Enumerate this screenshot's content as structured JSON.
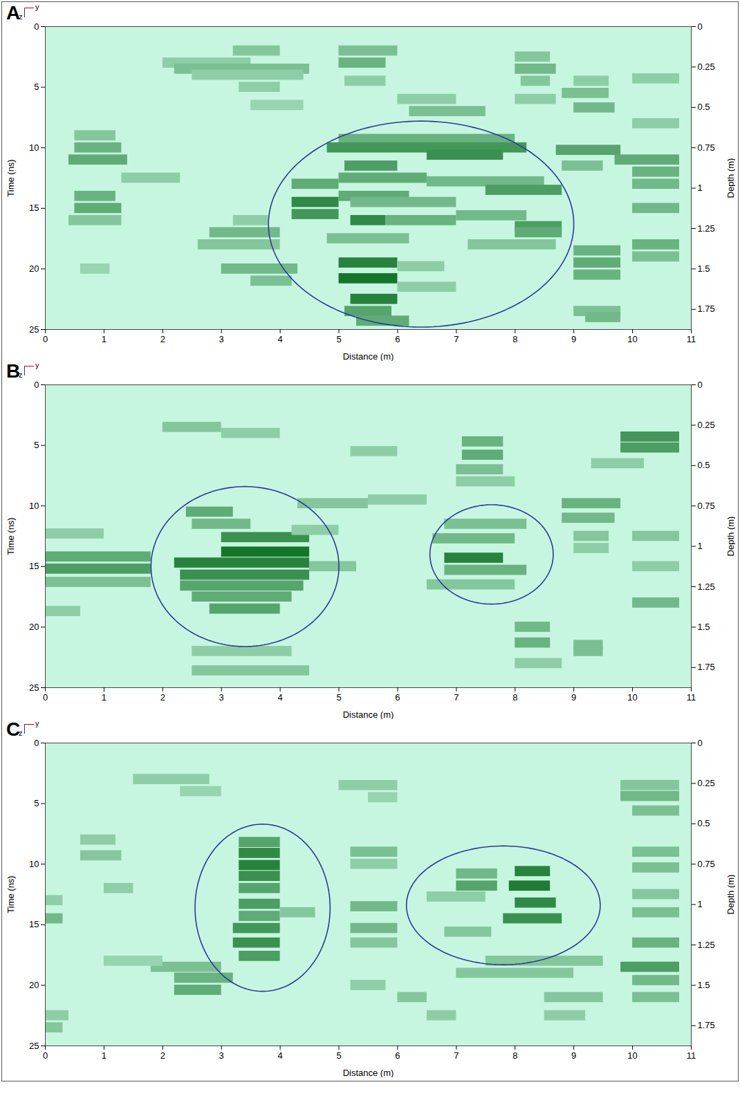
{
  "chart_data": [
    {
      "type": "heatmap",
      "title": "A",
      "axes_icon": [
        "y",
        "z"
      ],
      "x_label": "Distance (m)",
      "y_label": "Time (ns)",
      "y2_label": "Depth (m)",
      "xlim": [
        0,
        11
      ],
      "xticks": [
        0,
        1,
        2,
        3,
        4,
        5,
        6,
        7,
        8,
        9,
        10,
        11
      ],
      "ylim": [
        0,
        25
      ],
      "yticks": [
        0,
        5,
        10,
        15,
        20,
        25
      ],
      "y2lim": [
        0,
        1.875
      ],
      "y2ticks": [
        0,
        0.25,
        0.5,
        0.75,
        1,
        1.25,
        1.5,
        1.75
      ],
      "amplitude_range": [
        0,
        1
      ],
      "reflections": [
        [
          0.5,
          1.2,
          9,
          0.35
        ],
        [
          0.5,
          1.3,
          10,
          0.5
        ],
        [
          0.4,
          1.4,
          11,
          0.55
        ],
        [
          0.5,
          1.2,
          14,
          0.5
        ],
        [
          0.5,
          1.3,
          15,
          0.55
        ],
        [
          0.4,
          1.3,
          16,
          0.35
        ],
        [
          0.6,
          1.1,
          20,
          0.25
        ],
        [
          1.3,
          2.3,
          12.5,
          0.3
        ],
        [
          2,
          3.5,
          3,
          0.3
        ],
        [
          2.2,
          4.5,
          3.5,
          0.4
        ],
        [
          3.2,
          4,
          2,
          0.35
        ],
        [
          2.5,
          4.4,
          4,
          0.3
        ],
        [
          3.3,
          4,
          5,
          0.3
        ],
        [
          3.5,
          4.4,
          6.5,
          0.25
        ],
        [
          2.8,
          4,
          17,
          0.45
        ],
        [
          2.6,
          4,
          18,
          0.35
        ],
        [
          3,
          4.3,
          20,
          0.45
        ],
        [
          3.5,
          4.2,
          21,
          0.4
        ],
        [
          3.2,
          3.8,
          16,
          0.3
        ],
        [
          5,
          6,
          2,
          0.4
        ],
        [
          5,
          5.8,
          3,
          0.5
        ],
        [
          5.1,
          5.8,
          4.5,
          0.3
        ],
        [
          6.2,
          7.5,
          7,
          0.4
        ],
        [
          6,
          7,
          6,
          0.3
        ],
        [
          5,
          8,
          9.3,
          0.5
        ],
        [
          4.8,
          8.2,
          10,
          0.7
        ],
        [
          6.5,
          7.8,
          10.6,
          0.75
        ],
        [
          5.1,
          6,
          11.5,
          0.65
        ],
        [
          5,
          6.5,
          12.5,
          0.55
        ],
        [
          6.5,
          8.5,
          12.8,
          0.45
        ],
        [
          4.2,
          5,
          13,
          0.55
        ],
        [
          4.2,
          5,
          14.5,
          0.8
        ],
        [
          4.2,
          5,
          15.5,
          0.7
        ],
        [
          5,
          6.2,
          14,
          0.55
        ],
        [
          5.2,
          7,
          14.5,
          0.45
        ],
        [
          7.5,
          8.8,
          13.5,
          0.65
        ],
        [
          5.2,
          5.8,
          16,
          0.8
        ],
        [
          5.8,
          7,
          16,
          0.5
        ],
        [
          7,
          8.2,
          15.6,
          0.45
        ],
        [
          8,
          8.8,
          16.5,
          0.65
        ],
        [
          8,
          8.8,
          17,
          0.55
        ],
        [
          4.8,
          6.2,
          17.5,
          0.4
        ],
        [
          7.2,
          8.7,
          18,
          0.35
        ],
        [
          5,
          6,
          19.5,
          0.85
        ],
        [
          5,
          6,
          20.8,
          0.95
        ],
        [
          5.2,
          6,
          22.5,
          0.85
        ],
        [
          5.1,
          5.9,
          23.5,
          0.6
        ],
        [
          5.3,
          6.2,
          24.3,
          0.55
        ],
        [
          6,
          6.8,
          19.8,
          0.3
        ],
        [
          6,
          7,
          21.5,
          0.3
        ],
        [
          8,
          8.6,
          2.5,
          0.35
        ],
        [
          8,
          8.7,
          3.5,
          0.45
        ],
        [
          8.1,
          8.6,
          4.5,
          0.35
        ],
        [
          8,
          8.7,
          6,
          0.3
        ],
        [
          8.8,
          9.6,
          5.5,
          0.4
        ],
        [
          9,
          9.7,
          6.7,
          0.45
        ],
        [
          9,
          9.6,
          4.5,
          0.3
        ],
        [
          8.7,
          9.8,
          10.2,
          0.6
        ],
        [
          8.8,
          9.5,
          11.5,
          0.4
        ],
        [
          9.7,
          10.8,
          11,
          0.55
        ],
        [
          10,
          10.8,
          12,
          0.5
        ],
        [
          10,
          10.8,
          13,
          0.45
        ],
        [
          10,
          10.8,
          15,
          0.45
        ],
        [
          10,
          10.8,
          18,
          0.5
        ],
        [
          10,
          10.8,
          19,
          0.4
        ],
        [
          10,
          10.8,
          8,
          0.3
        ],
        [
          10,
          10.8,
          4.3,
          0.3
        ],
        [
          9,
          9.8,
          18.5,
          0.5
        ],
        [
          9,
          9.8,
          19.5,
          0.55
        ],
        [
          9,
          9.8,
          20.5,
          0.5
        ],
        [
          9,
          9.8,
          23.5,
          0.4
        ],
        [
          9.2,
          9.8,
          24,
          0.45
        ]
      ],
      "ellipses": [
        {
          "cx": 6.4,
          "cy": 16.3,
          "rx": 2.6,
          "ry": 8.5
        }
      ]
    },
    {
      "type": "heatmap",
      "title": "B",
      "axes_icon": [
        "y",
        "z"
      ],
      "x_label": "Distance (m)",
      "y_label": "Time (ns)",
      "y2_label": "Depth (m)",
      "xlim": [
        0,
        11
      ],
      "xticks": [
        0,
        1,
        2,
        3,
        4,
        5,
        6,
        7,
        8,
        9,
        10,
        11
      ],
      "ylim": [
        0,
        25
      ],
      "yticks": [
        0,
        5,
        10,
        15,
        20,
        25
      ],
      "y2lim": [
        0,
        1.875
      ],
      "y2ticks": [
        0,
        0.25,
        0.5,
        0.75,
        1,
        1.25,
        1.5,
        1.75
      ],
      "amplitude_range": [
        0,
        1
      ],
      "reflections": [
        [
          0,
          1.8,
          14.2,
          0.55
        ],
        [
          0,
          1.8,
          15.2,
          0.65
        ],
        [
          0,
          1.8,
          16.3,
          0.4
        ],
        [
          0,
          0.6,
          18.7,
          0.3
        ],
        [
          0,
          1,
          12.3,
          0.3
        ],
        [
          2,
          3,
          3.5,
          0.35
        ],
        [
          3,
          4,
          4,
          0.3
        ],
        [
          2.4,
          3.2,
          10.5,
          0.55
        ],
        [
          2.5,
          3.5,
          11.5,
          0.45
        ],
        [
          3,
          4.5,
          12.6,
          0.75
        ],
        [
          3,
          4.5,
          13.8,
          0.95
        ],
        [
          2.2,
          4.5,
          14.7,
          0.85
        ],
        [
          2.3,
          4.5,
          15.7,
          0.75
        ],
        [
          2.3,
          4.4,
          16.6,
          0.6
        ],
        [
          2.5,
          4.2,
          17.5,
          0.55
        ],
        [
          2.8,
          4,
          18.5,
          0.6
        ],
        [
          4.2,
          5,
          12,
          0.3
        ],
        [
          4.5,
          5.3,
          15,
          0.35
        ],
        [
          2.5,
          4.2,
          22,
          0.3
        ],
        [
          2.5,
          4.5,
          23.6,
          0.35
        ],
        [
          4.3,
          5.5,
          9.8,
          0.35
        ],
        [
          5.5,
          6.5,
          9.5,
          0.3
        ],
        [
          5.2,
          6,
          5.5,
          0.3
        ],
        [
          7.1,
          7.8,
          4.7,
          0.5
        ],
        [
          7.1,
          7.8,
          5.8,
          0.55
        ],
        [
          7,
          7.8,
          7,
          0.4
        ],
        [
          7,
          8,
          8,
          0.3
        ],
        [
          6.8,
          8.2,
          11.5,
          0.4
        ],
        [
          6.6,
          8,
          12.7,
          0.45
        ],
        [
          6.8,
          7.8,
          14.3,
          0.85
        ],
        [
          6.8,
          8.2,
          15.3,
          0.5
        ],
        [
          6.5,
          8,
          16.5,
          0.35
        ],
        [
          8,
          8.6,
          20,
          0.45
        ],
        [
          8,
          8.6,
          21.3,
          0.5
        ],
        [
          8,
          8.8,
          23,
          0.3
        ],
        [
          8.8,
          9.8,
          9.8,
          0.5
        ],
        [
          8.8,
          9.7,
          11,
          0.45
        ],
        [
          9,
          9.6,
          12.5,
          0.35
        ],
        [
          9,
          9.6,
          13.5,
          0.3
        ],
        [
          9.8,
          10.8,
          4.3,
          0.7
        ],
        [
          9.8,
          10.8,
          5.2,
          0.65
        ],
        [
          9.3,
          10.2,
          6.5,
          0.3
        ],
        [
          10,
          10.8,
          18,
          0.45
        ],
        [
          9,
          9.5,
          21.5,
          0.4
        ],
        [
          9,
          9.5,
          22,
          0.4
        ],
        [
          10,
          10.8,
          12.5,
          0.35
        ],
        [
          10,
          10.8,
          15,
          0.3
        ]
      ],
      "ellipses": [
        {
          "cx": 3.4,
          "cy": 15,
          "rx": 1.6,
          "ry": 6.6
        },
        {
          "cx": 7.6,
          "cy": 14,
          "rx": 1.05,
          "ry": 4.1
        }
      ]
    },
    {
      "type": "heatmap",
      "title": "C",
      "axes_icon": [
        "y",
        "z"
      ],
      "x_label": "Distance (m)",
      "y_label": "Time (ns)",
      "y2_label": "Depth (m)",
      "xlim": [
        0,
        11
      ],
      "xticks": [
        0,
        1,
        2,
        3,
        4,
        5,
        6,
        7,
        8,
        9,
        10,
        11
      ],
      "ylim": [
        0,
        25
      ],
      "yticks": [
        0,
        5,
        10,
        15,
        20,
        25
      ],
      "y2lim": [
        0,
        1.875
      ],
      "y2ticks": [
        0,
        0.25,
        0.5,
        0.75,
        1,
        1.25,
        1.5,
        1.75
      ],
      "amplitude_range": [
        0,
        1
      ],
      "reflections": [
        [
          0,
          0.3,
          14.5,
          0.45
        ],
        [
          0,
          0.3,
          13,
          0.3
        ],
        [
          0,
          0.4,
          22.5,
          0.3
        ],
        [
          0,
          0.3,
          23.5,
          0.35
        ],
        [
          0.6,
          1.2,
          8,
          0.3
        ],
        [
          0.6,
          1.3,
          9.3,
          0.35
        ],
        [
          1,
          1.5,
          12,
          0.3
        ],
        [
          1.5,
          2.8,
          3,
          0.3
        ],
        [
          2.3,
          3,
          4,
          0.25
        ],
        [
          1.8,
          3,
          18.5,
          0.4
        ],
        [
          2.2,
          3.2,
          19.4,
          0.5
        ],
        [
          2.2,
          3,
          20.4,
          0.55
        ],
        [
          1,
          2,
          18,
          0.25
        ],
        [
          3.3,
          4,
          8.2,
          0.6
        ],
        [
          3.3,
          4,
          9.1,
          0.8
        ],
        [
          3.3,
          4,
          10.1,
          0.85
        ],
        [
          3.3,
          4,
          11,
          0.75
        ],
        [
          3.3,
          4,
          12,
          0.6
        ],
        [
          3.3,
          4,
          13.3,
          0.65
        ],
        [
          3.3,
          4,
          14.3,
          0.55
        ],
        [
          3.2,
          4,
          15.3,
          0.7
        ],
        [
          3.2,
          4,
          16.5,
          0.75
        ],
        [
          3.3,
          4,
          17.6,
          0.65
        ],
        [
          4,
          4.6,
          14,
          0.35
        ],
        [
          5.2,
          6,
          9,
          0.4
        ],
        [
          5.2,
          6,
          10,
          0.3
        ],
        [
          5.2,
          6,
          13.5,
          0.45
        ],
        [
          5.2,
          6,
          15.3,
          0.45
        ],
        [
          5.2,
          6,
          16.5,
          0.35
        ],
        [
          5.2,
          5.8,
          20,
          0.3
        ],
        [
          5,
          6,
          3.5,
          0.3
        ],
        [
          5.5,
          6,
          4.5,
          0.25
        ],
        [
          6,
          6.5,
          21,
          0.35
        ],
        [
          6.5,
          7,
          22.5,
          0.3
        ],
        [
          7,
          7.7,
          10.8,
          0.45
        ],
        [
          7,
          7.7,
          11.8,
          0.6
        ],
        [
          8,
          8.6,
          10.6,
          0.85
        ],
        [
          7.9,
          8.6,
          11.8,
          0.9
        ],
        [
          8,
          8.7,
          13.2,
          0.8
        ],
        [
          7.8,
          8.8,
          14.5,
          0.75
        ],
        [
          6.8,
          7.6,
          15.6,
          0.35
        ],
        [
          6.5,
          7.5,
          12.7,
          0.3
        ],
        [
          7.5,
          9.5,
          18,
          0.35
        ],
        [
          7,
          9,
          19,
          0.35
        ],
        [
          8.5,
          9.5,
          21,
          0.35
        ],
        [
          8.5,
          9.2,
          22.5,
          0.3
        ],
        [
          9.8,
          10.8,
          3.5,
          0.35
        ],
        [
          9.8,
          10.8,
          4.4,
          0.45
        ],
        [
          10,
          10.8,
          5.6,
          0.4
        ],
        [
          10,
          10.8,
          9,
          0.4
        ],
        [
          10,
          10.8,
          10.3,
          0.4
        ],
        [
          10,
          10.8,
          12.5,
          0.35
        ],
        [
          10,
          10.8,
          14,
          0.4
        ],
        [
          10,
          10.8,
          16.5,
          0.5
        ],
        [
          9.8,
          10.8,
          18.5,
          0.65
        ],
        [
          10,
          10.8,
          19.6,
          0.45
        ],
        [
          10,
          10.8,
          21,
          0.4
        ]
      ],
      "ellipses": [
        {
          "cx": 3.7,
          "cy": 13.6,
          "rx": 1.15,
          "ry": 6.9
        },
        {
          "cx": 7.8,
          "cy": 13.4,
          "rx": 1.65,
          "ry": 4.9
        }
      ]
    }
  ]
}
